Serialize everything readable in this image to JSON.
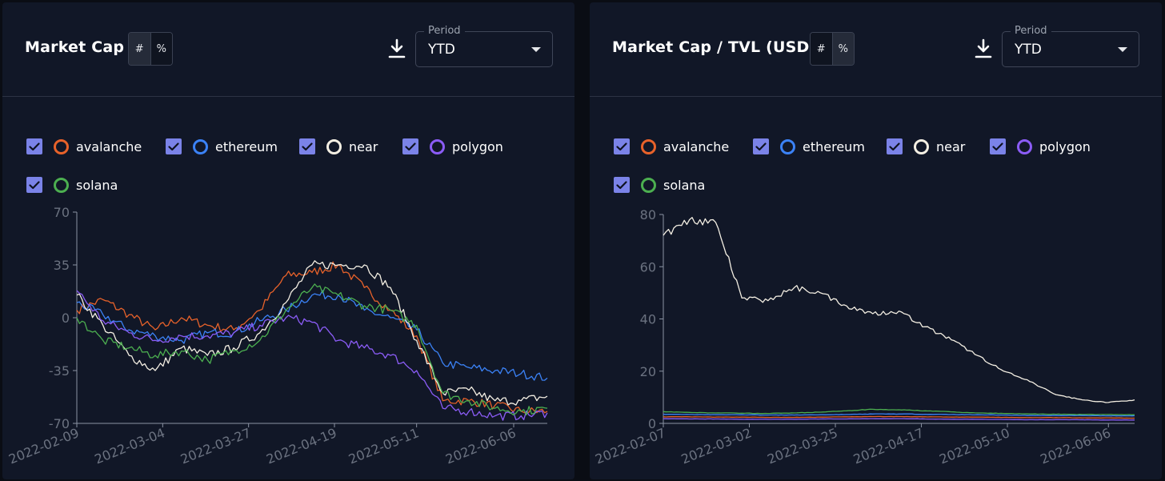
{
  "panels": [
    {
      "title": "Market Cap",
      "toggle": [
        "#",
        "%"
      ],
      "toggle_active": 1,
      "period": {
        "label": "Period",
        "value": "YTD"
      },
      "legend": [
        {
          "name": "avalanche",
          "color": "#e8622a",
          "checked": true
        },
        {
          "name": "ethereum",
          "color": "#3b82f6",
          "checked": true
        },
        {
          "name": "near",
          "color": "#f4efe3",
          "checked": true
        },
        {
          "name": "polygon",
          "color": "#8b5cf6",
          "checked": true
        },
        {
          "name": "solana",
          "color": "#4caf50",
          "checked": true
        }
      ]
    },
    {
      "title": "Market Cap / TVL (USD)",
      "toggle": [
        "#",
        "%"
      ],
      "toggle_active": 0,
      "period": {
        "label": "Period",
        "value": "YTD"
      },
      "legend": [
        {
          "name": "avalanche",
          "color": "#e8622a",
          "checked": true
        },
        {
          "name": "ethereum",
          "color": "#3b82f6",
          "checked": true
        },
        {
          "name": "near",
          "color": "#f4efe3",
          "checked": true
        },
        {
          "name": "polygon",
          "color": "#8b5cf6",
          "checked": true
        },
        {
          "name": "solana",
          "color": "#4caf50",
          "checked": true
        }
      ]
    }
  ],
  "chart_data": [
    {
      "type": "line",
      "title": "Market Cap",
      "unit": "%",
      "ylim": [
        -70,
        70
      ],
      "yticks": [
        70,
        35,
        0,
        -35,
        -70
      ],
      "x": [
        "2022-02-09",
        "2022-02-16",
        "2022-02-23",
        "2022-03-02",
        "2022-03-09",
        "2022-03-16",
        "2022-03-23",
        "2022-03-30",
        "2022-04-06",
        "2022-04-13",
        "2022-04-20",
        "2022-04-27",
        "2022-05-04",
        "2022-05-11",
        "2022-05-18",
        "2022-05-25",
        "2022-06-01",
        "2022-06-08",
        "2022-06-15"
      ],
      "xticks": [
        "2022-02-09",
        "2022-03-04",
        "2022-03-27",
        "2022-04-19",
        "2022-05-11",
        "2022-06-06"
      ],
      "series": [
        {
          "name": "avalanche",
          "color": "#e8622a",
          "values": [
            5,
            12,
            2,
            -8,
            0,
            -5,
            -8,
            5,
            28,
            30,
            35,
            20,
            5,
            -12,
            -55,
            -55,
            -58,
            -62,
            -62
          ]
        },
        {
          "name": "ethereum",
          "color": "#3b82f6",
          "values": [
            10,
            2,
            -8,
            -12,
            -15,
            -10,
            -10,
            -2,
            5,
            15,
            15,
            5,
            0,
            -8,
            -30,
            -33,
            -35,
            -37,
            -40
          ]
        },
        {
          "name": "near",
          "color": "#f4efe3",
          "values": [
            15,
            -5,
            -25,
            -35,
            -20,
            -25,
            -20,
            -10,
            10,
            35,
            35,
            35,
            20,
            -15,
            -50,
            -48,
            -55,
            -55,
            -52
          ]
        },
        {
          "name": "polygon",
          "color": "#8b5cf6",
          "values": [
            18,
            -2,
            -10,
            -15,
            -12,
            -12,
            -10,
            -5,
            0,
            -3,
            -15,
            -20,
            -25,
            -35,
            -60,
            -62,
            -65,
            -65,
            -63
          ]
        },
        {
          "name": "solana",
          "color": "#4caf50",
          "values": [
            0,
            -15,
            -20,
            -25,
            -22,
            -28,
            -22,
            -15,
            5,
            20,
            15,
            8,
            5,
            -5,
            -50,
            -55,
            -60,
            -62,
            -60
          ]
        }
      ]
    },
    {
      "type": "line",
      "title": "Market Cap / TVL (USD)",
      "ylim": [
        0,
        80
      ],
      "yticks": [
        80,
        60,
        40,
        20,
        0
      ],
      "x": [
        "2022-02-07",
        "2022-02-14",
        "2022-02-21",
        "2022-02-28",
        "2022-03-07",
        "2022-03-14",
        "2022-03-21",
        "2022-03-28",
        "2022-04-04",
        "2022-04-11",
        "2022-04-18",
        "2022-04-25",
        "2022-05-02",
        "2022-05-09",
        "2022-05-16",
        "2022-05-23",
        "2022-05-30",
        "2022-06-06",
        "2022-06-13"
      ],
      "xticks": [
        "2022-02-07",
        "2022-03-02",
        "2022-03-25",
        "2022-04-17",
        "2022-05-10",
        "2022-06-06"
      ],
      "series": [
        {
          "name": "avalanche",
          "color": "#e8622a",
          "values": [
            2.5,
            2.5,
            2.4,
            2.4,
            2.3,
            2.3,
            2.4,
            2.5,
            2.6,
            2.6,
            2.5,
            2.4,
            2.4,
            2.3,
            2.2,
            2.2,
            2.1,
            2.1,
            2.0
          ]
        },
        {
          "name": "ethereum",
          "color": "#3b82f6",
          "values": [
            3.5,
            3.4,
            3.3,
            3.3,
            3.2,
            3.2,
            3.3,
            3.4,
            3.6,
            3.6,
            3.5,
            3.4,
            3.3,
            3.2,
            3.0,
            3.0,
            3.0,
            2.9,
            2.9
          ]
        },
        {
          "name": "near",
          "color": "#f4efe3",
          "values": [
            72,
            78,
            77,
            48,
            47,
            52,
            50,
            45,
            42,
            43,
            37,
            32,
            26,
            20,
            16,
            11,
            9,
            8,
            9
          ]
        },
        {
          "name": "polygon",
          "color": "#8b5cf6",
          "values": [
            1.8,
            1.7,
            1.7,
            1.6,
            1.6,
            1.6,
            1.7,
            1.7,
            1.8,
            1.8,
            1.7,
            1.6,
            1.6,
            1.5,
            1.4,
            1.4,
            1.4,
            1.3,
            1.3
          ]
        },
        {
          "name": "solana",
          "color": "#4caf50",
          "values": [
            4.5,
            4.2,
            4.0,
            3.9,
            3.8,
            4.0,
            4.3,
            4.8,
            5.4,
            5.2,
            4.8,
            4.4,
            4.0,
            3.8,
            3.6,
            3.5,
            3.4,
            3.4,
            3.3
          ]
        }
      ]
    }
  ]
}
